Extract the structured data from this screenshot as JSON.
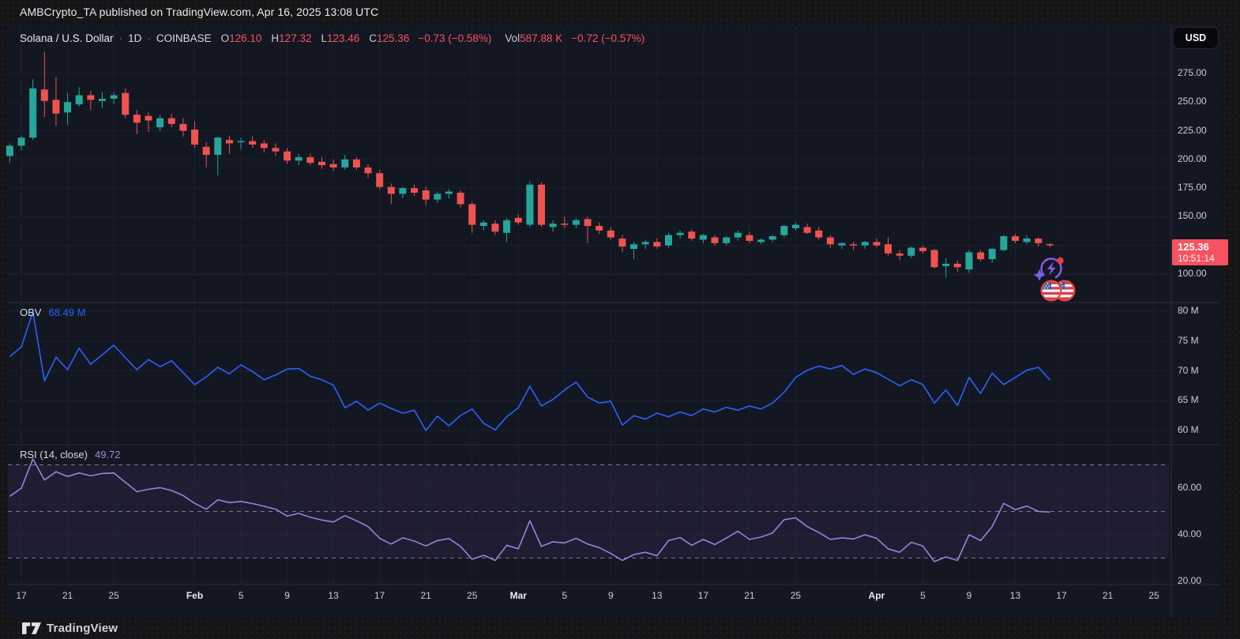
{
  "header": {
    "publish_line": "AMBCrypto_TA published on TradingView.com, Apr 16, 2025 13:08 UTC"
  },
  "toolbar": {
    "currency_button": "USD"
  },
  "legend": {
    "symbol": "Solana / U.S. Dollar",
    "separator": "·",
    "interval": "1D",
    "exchange": "COINBASE",
    "ohlc": [
      {
        "k": "O",
        "v": "126.10"
      },
      {
        "k": "H",
        "v": "127.32"
      },
      {
        "k": "L",
        "v": "123.46"
      },
      {
        "k": "C",
        "v": "125.36"
      }
    ],
    "change": "−0.73 (−0.58%)",
    "volume_label": "Vol",
    "volume": "587.88 K",
    "volume_change": "−0.72 (−0.57%)"
  },
  "price_scale": {
    "labels": [
      {
        "text": "275.00",
        "value": 275
      },
      {
        "text": "250.00",
        "value": 250
      },
      {
        "text": "225.00",
        "value": 225
      },
      {
        "text": "200.00",
        "value": 200
      },
      {
        "text": "175.00",
        "value": 175
      },
      {
        "text": "150.00",
        "value": 150
      },
      {
        "text": "100.00",
        "value": 100
      }
    ],
    "gridline_values": [
      275,
      250,
      225,
      200,
      175,
      150,
      125,
      100
    ]
  },
  "price_badge": {
    "price": "125.36",
    "countdown": "10:51:14"
  },
  "indicators": {
    "obv": {
      "label": "OBV",
      "value": "68.49 M"
    },
    "rsi": {
      "label": "RSI (14, close)",
      "value": "49.72"
    }
  },
  "obv_scale": {
    "labels": [
      {
        "text": "80 M",
        "value": 80
      },
      {
        "text": "75 M",
        "value": 75
      },
      {
        "text": "70 M",
        "value": 70
      },
      {
        "text": "65 M",
        "value": 65
      },
      {
        "text": "60 M",
        "value": 60
      }
    ]
  },
  "rsi_scale": {
    "labels": [
      {
        "text": "60.00",
        "value": 60
      },
      {
        "text": "40.00",
        "value": 40
      },
      {
        "text": "20.00",
        "value": 20
      }
    ]
  },
  "time_axis": {
    "ticks": [
      {
        "label": "17",
        "day_index": 1,
        "major": false
      },
      {
        "label": "21",
        "day_index": 5,
        "major": false
      },
      {
        "label": "25",
        "day_index": 9,
        "major": false
      },
      {
        "label": "Feb",
        "day_index": 16,
        "major": true
      },
      {
        "label": "5",
        "day_index": 20,
        "major": false
      },
      {
        "label": "9",
        "day_index": 24,
        "major": false
      },
      {
        "label": "13",
        "day_index": 28,
        "major": false
      },
      {
        "label": "17",
        "day_index": 32,
        "major": false
      },
      {
        "label": "21",
        "day_index": 36,
        "major": false
      },
      {
        "label": "25",
        "day_index": 40,
        "major": false
      },
      {
        "label": "Mar",
        "day_index": 44,
        "major": true
      },
      {
        "label": "5",
        "day_index": 48,
        "major": false
      },
      {
        "label": "9",
        "day_index": 52,
        "major": false
      },
      {
        "label": "13",
        "day_index": 56,
        "major": false
      },
      {
        "label": "17",
        "day_index": 60,
        "major": false
      },
      {
        "label": "21",
        "day_index": 64,
        "major": false
      },
      {
        "label": "25",
        "day_index": 68,
        "major": false
      },
      {
        "label": "Apr",
        "day_index": 75,
        "major": true
      },
      {
        "label": "5",
        "day_index": 79,
        "major": false
      },
      {
        "label": "9",
        "day_index": 83,
        "major": false
      },
      {
        "label": "13",
        "day_index": 87,
        "major": false
      },
      {
        "label": "17",
        "day_index": 91,
        "major": false
      },
      {
        "label": "21",
        "day_index": 95,
        "major": false
      },
      {
        "label": "25",
        "day_index": 99,
        "major": false
      }
    ]
  },
  "footer": {
    "logo_text": "TradingView"
  },
  "icons": {
    "ai_event_icon": "lightning-sparkle-icon",
    "flag_event_icon": "us-flag-icon",
    "flag_count": 2,
    "logo_icon": "tradingview-logo-icon"
  },
  "colors": {
    "up": "#26a69a",
    "down": "#ef5350",
    "obv_line": "#2962ff",
    "rsi_line": "#9b82d8",
    "rsi_band_fill": "rgba(126,87,194,0.10)",
    "dashed_level": "#8b8e98",
    "grid": "#1c202c",
    "divider": "#2a2e39",
    "accent_red": "#f7525f",
    "badge_bg": "#f7525f",
    "background": "#131722"
  },
  "chart_data": [
    {
      "type": "candlestick",
      "title": "Solana / U.S. Dollar",
      "exchange": "COINBASE",
      "interval": "1D",
      "start_date": "2025-01-16",
      "end_date": "2025-04-16",
      "ylabel": "Price (USD)",
      "ylim": [
        90,
        300
      ],
      "y_ticks": [
        100,
        125,
        150,
        175,
        200,
        225,
        250,
        275
      ],
      "last": {
        "o": 126.1,
        "h": 127.32,
        "l": 123.46,
        "c": 125.36,
        "change": -0.73,
        "change_pct": -0.58
      },
      "candles_ohlc": [
        [
          203,
          214,
          197,
          212
        ],
        [
          212,
          221,
          208,
          219
        ],
        [
          219,
          270,
          217,
          262
        ],
        [
          261,
          294,
          237,
          251
        ],
        [
          252,
          272,
          229,
          240
        ],
        [
          241,
          258,
          230,
          250
        ],
        [
          248,
          263,
          246,
          256
        ],
        [
          256,
          260,
          243,
          252
        ],
        [
          251,
          259,
          245,
          253
        ],
        [
          253,
          259,
          248,
          256
        ],
        [
          258,
          262,
          236,
          239
        ],
        [
          239,
          243,
          222,
          232
        ],
        [
          238,
          241,
          224,
          234
        ],
        [
          228,
          239,
          225,
          236
        ],
        [
          236,
          240,
          228,
          231
        ],
        [
          231,
          236,
          220,
          225
        ],
        [
          226,
          233,
          210,
          213
        ],
        [
          211,
          215,
          193,
          204
        ],
        [
          204,
          220,
          186,
          219
        ],
        [
          217,
          221,
          205,
          214
        ],
        [
          215,
          219,
          209,
          216
        ],
        [
          216,
          220,
          210,
          213
        ],
        [
          214,
          217,
          206,
          210
        ],
        [
          210,
          214,
          203,
          207
        ],
        [
          207,
          210,
          196,
          199
        ],
        [
          199,
          205,
          195,
          202
        ],
        [
          202,
          205,
          195,
          197
        ],
        [
          198,
          202,
          192,
          195
        ],
        [
          196,
          200,
          190,
          193
        ],
        [
          193,
          204,
          191,
          200
        ],
        [
          200,
          202,
          191,
          193
        ],
        [
          193,
          196,
          184,
          188
        ],
        [
          188,
          191,
          174,
          176
        ],
        [
          176,
          179,
          161,
          170
        ],
        [
          170,
          176,
          166,
          175
        ],
        [
          175,
          178,
          168,
          171
        ],
        [
          173,
          176,
          160,
          165
        ],
        [
          165,
          172,
          162,
          170
        ],
        [
          170,
          174,
          166,
          172
        ],
        [
          171,
          173,
          158,
          161
        ],
        [
          161,
          163,
          136,
          143
        ],
        [
          142,
          147,
          138,
          145
        ],
        [
          144,
          147,
          134,
          137
        ],
        [
          136,
          149,
          128,
          147
        ],
        [
          149,
          152,
          143,
          145
        ],
        [
          143,
          181,
          141,
          178
        ],
        [
          178,
          180,
          141,
          143
        ],
        [
          141,
          147,
          137,
          144
        ],
        [
          144,
          150,
          140,
          143
        ],
        [
          143,
          149,
          140,
          147
        ],
        [
          148,
          150,
          127,
          142
        ],
        [
          142,
          145,
          135,
          138
        ],
        [
          138,
          141,
          130,
          132
        ],
        [
          131,
          134,
          119,
          124
        ],
        [
          122,
          128,
          113,
          126
        ],
        [
          126,
          130,
          122,
          128
        ],
        [
          128,
          131,
          122,
          124
        ],
        [
          125,
          136,
          123,
          134
        ],
        [
          134,
          138,
          131,
          136
        ],
        [
          137,
          139,
          129,
          131
        ],
        [
          130,
          135,
          127,
          134
        ],
        [
          132,
          134,
          125,
          127
        ],
        [
          127,
          133,
          125,
          132
        ],
        [
          132,
          138,
          129,
          136
        ],
        [
          134,
          137,
          127,
          129
        ],
        [
          128,
          131,
          126,
          130
        ],
        [
          130,
          134,
          128,
          133
        ],
        [
          134,
          143,
          132,
          142
        ],
        [
          140,
          145,
          138,
          143
        ],
        [
          141,
          144,
          135,
          136
        ],
        [
          138,
          141,
          130,
          132
        ],
        [
          132,
          134,
          123,
          126
        ],
        [
          125,
          128,
          122,
          127
        ],
        [
          126,
          128,
          121,
          125
        ],
        [
          125,
          129,
          122,
          128
        ],
        [
          128,
          131,
          123,
          125
        ],
        [
          126,
          132,
          116,
          118
        ],
        [
          118,
          121,
          112,
          116
        ],
        [
          116,
          124,
          114,
          123
        ],
        [
          123,
          125,
          118,
          120
        ],
        [
          121,
          122,
          105,
          106
        ],
        [
          107,
          114,
          97,
          109
        ],
        [
          109,
          112,
          102,
          106
        ],
        [
          104,
          121,
          101,
          119
        ],
        [
          119,
          121,
          111,
          113
        ],
        [
          113,
          123,
          110,
          122
        ],
        [
          121,
          134,
          120,
          133
        ],
        [
          133,
          135,
          127,
          129
        ],
        [
          128,
          134,
          126,
          131
        ],
        [
          131,
          132,
          124,
          127
        ],
        [
          126.1,
          127.32,
          123.46,
          125.36
        ]
      ]
    },
    {
      "type": "line",
      "title": "OBV",
      "unit": "M",
      "current_value": 68.49,
      "ylim": [
        58,
        82
      ],
      "y_ticks": [
        60,
        65,
        70,
        75,
        80
      ],
      "values": [
        72.4,
        74,
        79.9,
        68.3,
        72.3,
        70.2,
        73.8,
        71.1,
        72.7,
        74.3,
        72.2,
        70.2,
        71.9,
        70.7,
        71.7,
        69.7,
        67.7,
        69,
        70.6,
        69.5,
        71,
        69.9,
        68.5,
        69.3,
        70.3,
        70.4,
        69.1,
        68.5,
        67.6,
        63.8,
        64.9,
        63.4,
        64.6,
        63.7,
        62.9,
        63.4,
        60,
        62.4,
        60.8,
        62.5,
        63.6,
        61.2,
        60.1,
        62.3,
        63.8,
        67.4,
        64.1,
        65.2,
        66.8,
        68.1,
        65.6,
        64.6,
        64.9,
        60.9,
        62.5,
        61.9,
        62.9,
        62.3,
        63.1,
        62.5,
        63.6,
        63.1,
        63.9,
        63.4,
        64.1,
        63.6,
        64.6,
        66.4,
        68.9,
        70.1,
        70.8,
        70.3,
        70.9,
        69.4,
        70.3,
        69.7,
        68.6,
        67.5,
        68.5,
        67.7,
        64.6,
        66.8,
        64.2,
        68.9,
        66.2,
        69.6,
        67.7,
        68.9,
        70.1,
        70.6,
        68.49
      ]
    },
    {
      "type": "line",
      "title": "RSI (14, close)",
      "current_value": 49.72,
      "ylim": [
        18,
        78
      ],
      "y_ticks": [
        20,
        40,
        60
      ],
      "levels": [
        30,
        50,
        70
      ],
      "values": [
        56.5,
        60,
        72.5,
        63.5,
        67,
        65,
        66.5,
        65.3,
        66.3,
        66.5,
        62.5,
        58.5,
        59.5,
        60.2,
        59,
        56.8,
        53.5,
        51,
        55,
        53.8,
        54.3,
        53.4,
        52.2,
        51,
        48,
        49.2,
        47.5,
        46.3,
        45.5,
        48.2,
        46,
        43.5,
        38.5,
        36,
        38.7,
        37.3,
        35.2,
        37.5,
        38.4,
        35,
        29.5,
        31.2,
        29,
        35.5,
        34,
        46,
        35,
        37,
        36.5,
        38.5,
        36,
        34.5,
        32,
        29,
        31.5,
        32.5,
        31,
        37.5,
        38.8,
        35.5,
        38,
        35.8,
        38.6,
        41.5,
        38,
        39,
        40.8,
        46.5,
        47.3,
        43.5,
        41,
        38,
        38.7,
        38.2,
        40,
        38.5,
        34,
        32.5,
        36.8,
        35.2,
        28.5,
        30.5,
        29,
        40,
        37.5,
        43.5,
        53.5,
        50.8,
        52.3,
        50,
        49.72
      ]
    }
  ]
}
